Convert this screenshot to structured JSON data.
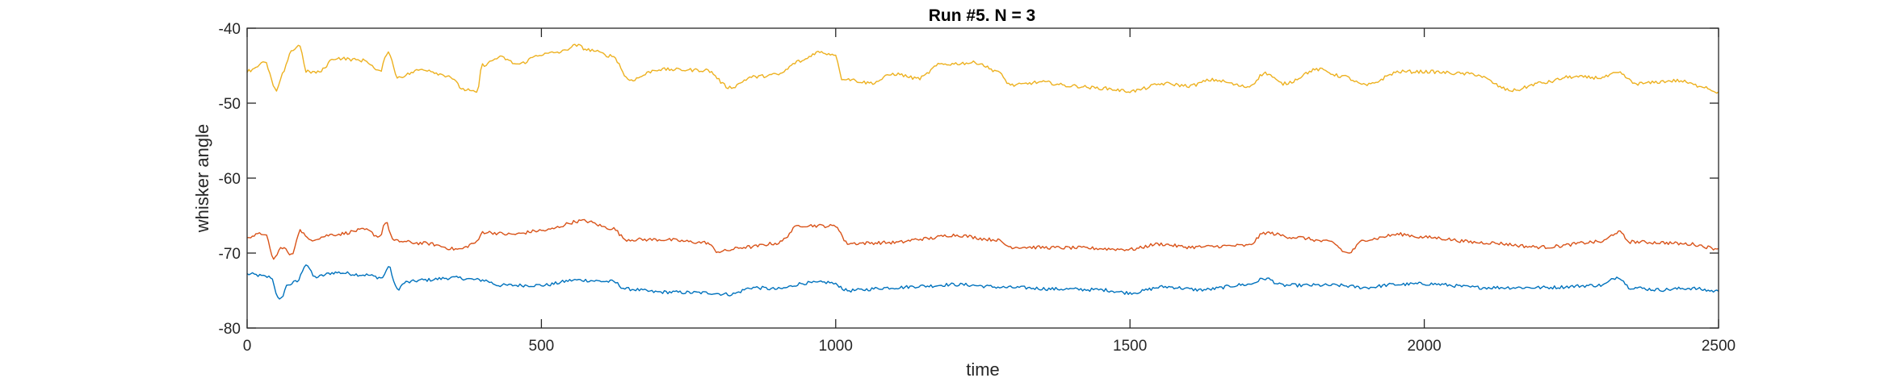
{
  "chart_data": {
    "type": "line",
    "title": "Run #5. N = 3",
    "xlabel": "time",
    "ylabel": "whisker angle",
    "xlim": [
      0,
      2500
    ],
    "ylim": [
      -80,
      -40
    ],
    "xticks": [
      0,
      500,
      1000,
      1500,
      2000,
      2500
    ],
    "xtick_labels": [
      "0",
      "500",
      "1000",
      "1500",
      "2000",
      "2500"
    ],
    "yticks": [
      -80,
      -70,
      -60,
      -50,
      -40
    ],
    "ytick_labels": [
      "-80",
      "-70",
      "-60",
      "-50",
      "-40"
    ],
    "grid": false,
    "legend": "none",
    "series": [
      {
        "color": "#0072BD",
        "points": [
          [
            0,
            -72.8
          ],
          [
            40,
            -73.2
          ],
          [
            55,
            -76.3
          ],
          [
            70,
            -74.2
          ],
          [
            85,
            -73.8
          ],
          [
            100,
            -71.5
          ],
          [
            115,
            -73.2
          ],
          [
            150,
            -72.6
          ],
          [
            200,
            -72.9
          ],
          [
            230,
            -73.3
          ],
          [
            240,
            -71.8
          ],
          [
            255,
            -74.8
          ],
          [
            270,
            -73.9
          ],
          [
            300,
            -73.6
          ],
          [
            350,
            -73.3
          ],
          [
            400,
            -73.6
          ],
          [
            430,
            -74.3
          ],
          [
            500,
            -74.3
          ],
          [
            560,
            -73.6
          ],
          [
            620,
            -73.8
          ],
          [
            645,
            -74.8
          ],
          [
            700,
            -75.2
          ],
          [
            780,
            -75.3
          ],
          [
            820,
            -75.5
          ],
          [
            860,
            -74.6
          ],
          [
            900,
            -74.8
          ],
          [
            950,
            -74.0
          ],
          [
            990,
            -73.9
          ],
          [
            1000,
            -74.2
          ],
          [
            1020,
            -75.0
          ],
          [
            1100,
            -74.6
          ],
          [
            1150,
            -74.4
          ],
          [
            1200,
            -74.2
          ],
          [
            1300,
            -74.6
          ],
          [
            1380,
            -74.8
          ],
          [
            1450,
            -74.9
          ],
          [
            1500,
            -75.3
          ],
          [
            1560,
            -74.5
          ],
          [
            1620,
            -74.9
          ],
          [
            1700,
            -74.2
          ],
          [
            1730,
            -73.4
          ],
          [
            1760,
            -74.3
          ],
          [
            1800,
            -74.3
          ],
          [
            1850,
            -74.3
          ],
          [
            1900,
            -74.6
          ],
          [
            1950,
            -74.2
          ],
          [
            2000,
            -74.1
          ],
          [
            2100,
            -74.6
          ],
          [
            2200,
            -74.6
          ],
          [
            2300,
            -74.3
          ],
          [
            2330,
            -73.2
          ],
          [
            2350,
            -74.6
          ],
          [
            2400,
            -74.9
          ],
          [
            2450,
            -74.7
          ],
          [
            2500,
            -75.1
          ]
        ]
      },
      {
        "color": "#D95319",
        "points": [
          [
            0,
            -67.8
          ],
          [
            30,
            -67.4
          ],
          [
            45,
            -70.7
          ],
          [
            60,
            -69.2
          ],
          [
            75,
            -70.3
          ],
          [
            90,
            -67.0
          ],
          [
            105,
            -68.2
          ],
          [
            150,
            -67.5
          ],
          [
            200,
            -66.9
          ],
          [
            225,
            -67.8
          ],
          [
            235,
            -65.9
          ],
          [
            250,
            -68.4
          ],
          [
            300,
            -68.7
          ],
          [
            360,
            -69.5
          ],
          [
            390,
            -68.6
          ],
          [
            400,
            -67.2
          ],
          [
            450,
            -67.5
          ],
          [
            500,
            -67.0
          ],
          [
            570,
            -65.7
          ],
          [
            620,
            -66.7
          ],
          [
            645,
            -68.2
          ],
          [
            700,
            -68.2
          ],
          [
            780,
            -68.6
          ],
          [
            800,
            -69.8
          ],
          [
            850,
            -69.2
          ],
          [
            900,
            -68.7
          ],
          [
            940,
            -66.3
          ],
          [
            1000,
            -66.4
          ],
          [
            1020,
            -68.7
          ],
          [
            1100,
            -68.6
          ],
          [
            1150,
            -68.1
          ],
          [
            1200,
            -67.6
          ],
          [
            1270,
            -68.2
          ],
          [
            1300,
            -69.2
          ],
          [
            1400,
            -69.3
          ],
          [
            1500,
            -69.5
          ],
          [
            1550,
            -68.8
          ],
          [
            1600,
            -69.2
          ],
          [
            1700,
            -69.0
          ],
          [
            1730,
            -67.3
          ],
          [
            1780,
            -67.9
          ],
          [
            1840,
            -68.5
          ],
          [
            1870,
            -70.0
          ],
          [
            1900,
            -68.2
          ],
          [
            1960,
            -67.5
          ],
          [
            2000,
            -67.9
          ],
          [
            2100,
            -68.6
          ],
          [
            2200,
            -69.2
          ],
          [
            2300,
            -68.5
          ],
          [
            2330,
            -67.2
          ],
          [
            2350,
            -68.5
          ],
          [
            2400,
            -68.6
          ],
          [
            2450,
            -68.8
          ],
          [
            2500,
            -69.4
          ]
        ]
      },
      {
        "color": "#EDB120",
        "points": [
          [
            0,
            -45.7
          ],
          [
            30,
            -44.6
          ],
          [
            50,
            -48.4
          ],
          [
            60,
            -46.2
          ],
          [
            75,
            -43.0
          ],
          [
            90,
            -42.3
          ],
          [
            100,
            -45.8
          ],
          [
            120,
            -45.9
          ],
          [
            150,
            -44.0
          ],
          [
            200,
            -44.3
          ],
          [
            225,
            -45.8
          ],
          [
            240,
            -43.1
          ],
          [
            255,
            -46.5
          ],
          [
            300,
            -45.5
          ],
          [
            340,
            -46.3
          ],
          [
            370,
            -48.2
          ],
          [
            390,
            -48.6
          ],
          [
            400,
            -44.9
          ],
          [
            430,
            -43.9
          ],
          [
            460,
            -44.8
          ],
          [
            500,
            -43.5
          ],
          [
            530,
            -43.2
          ],
          [
            560,
            -42.3
          ],
          [
            580,
            -42.9
          ],
          [
            620,
            -43.7
          ],
          [
            650,
            -46.9
          ],
          [
            700,
            -45.5
          ],
          [
            780,
            -45.6
          ],
          [
            820,
            -47.9
          ],
          [
            860,
            -46.5
          ],
          [
            900,
            -46.2
          ],
          [
            940,
            -44.4
          ],
          [
            970,
            -43.2
          ],
          [
            1000,
            -43.5
          ],
          [
            1010,
            -46.7
          ],
          [
            1060,
            -47.3
          ],
          [
            1100,
            -46.1
          ],
          [
            1140,
            -46.7
          ],
          [
            1180,
            -44.8
          ],
          [
            1240,
            -44.6
          ],
          [
            1270,
            -45.6
          ],
          [
            1300,
            -47.6
          ],
          [
            1350,
            -47.2
          ],
          [
            1400,
            -47.7
          ],
          [
            1450,
            -48.0
          ],
          [
            1500,
            -48.4
          ],
          [
            1560,
            -47.4
          ],
          [
            1600,
            -47.7
          ],
          [
            1640,
            -46.9
          ],
          [
            1700,
            -47.8
          ],
          [
            1730,
            -46.0
          ],
          [
            1760,
            -47.4
          ],
          [
            1820,
            -45.5
          ],
          [
            1860,
            -46.4
          ],
          [
            1900,
            -47.6
          ],
          [
            1960,
            -45.8
          ],
          [
            2000,
            -45.8
          ],
          [
            2080,
            -46.1
          ],
          [
            2150,
            -48.3
          ],
          [
            2200,
            -47.3
          ],
          [
            2250,
            -46.5
          ],
          [
            2300,
            -46.6
          ],
          [
            2330,
            -46.0
          ],
          [
            2360,
            -47.4
          ],
          [
            2430,
            -47.0
          ],
          [
            2470,
            -47.7
          ],
          [
            2500,
            -48.5
          ]
        ]
      }
    ]
  }
}
